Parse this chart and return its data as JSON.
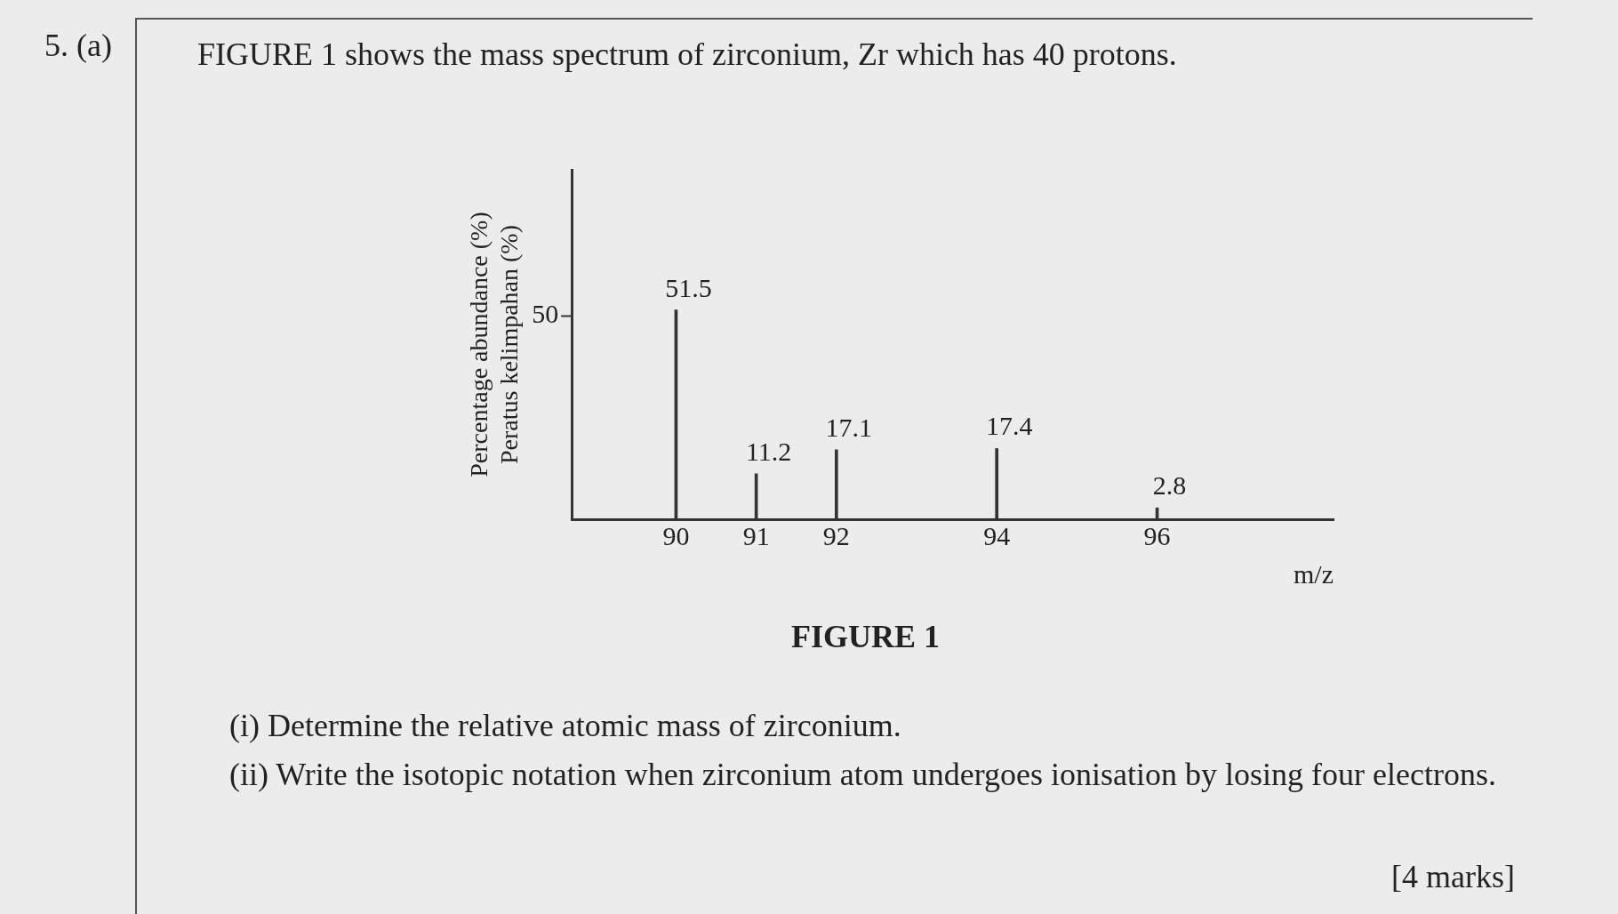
{
  "chart_data": {
    "type": "bar",
    "title": "FIGURE 1 shows the mass spectrum of zirconium, Zr which has 40 protons.",
    "xlabel": "m/z",
    "ylabel": "Percentage abundance (%)\nPeratus kelimpahan (%)",
    "x": [
      90,
      91,
      92,
      94,
      96
    ],
    "values": [
      51.5,
      11.2,
      17.1,
      17.4,
      2.8
    ],
    "color": "#333333",
    "xlim": [
      88.7,
      98.2
    ],
    "xticks": [
      90,
      91,
      92,
      94,
      96
    ],
    "ylim": [
      0,
      86
    ],
    "yticks": [
      50
    ],
    "data_labels": true,
    "grid": false,
    "legend": false,
    "annotations": [
      "5. (a)",
      "FIGURE 1",
      "(i) Determine the relative atomic mass of zirconium.",
      "(ii) Write the isotopic notation when zirconium atom undergoes ionisation by losing four electrons.",
      "[4 marks]"
    ]
  }
}
